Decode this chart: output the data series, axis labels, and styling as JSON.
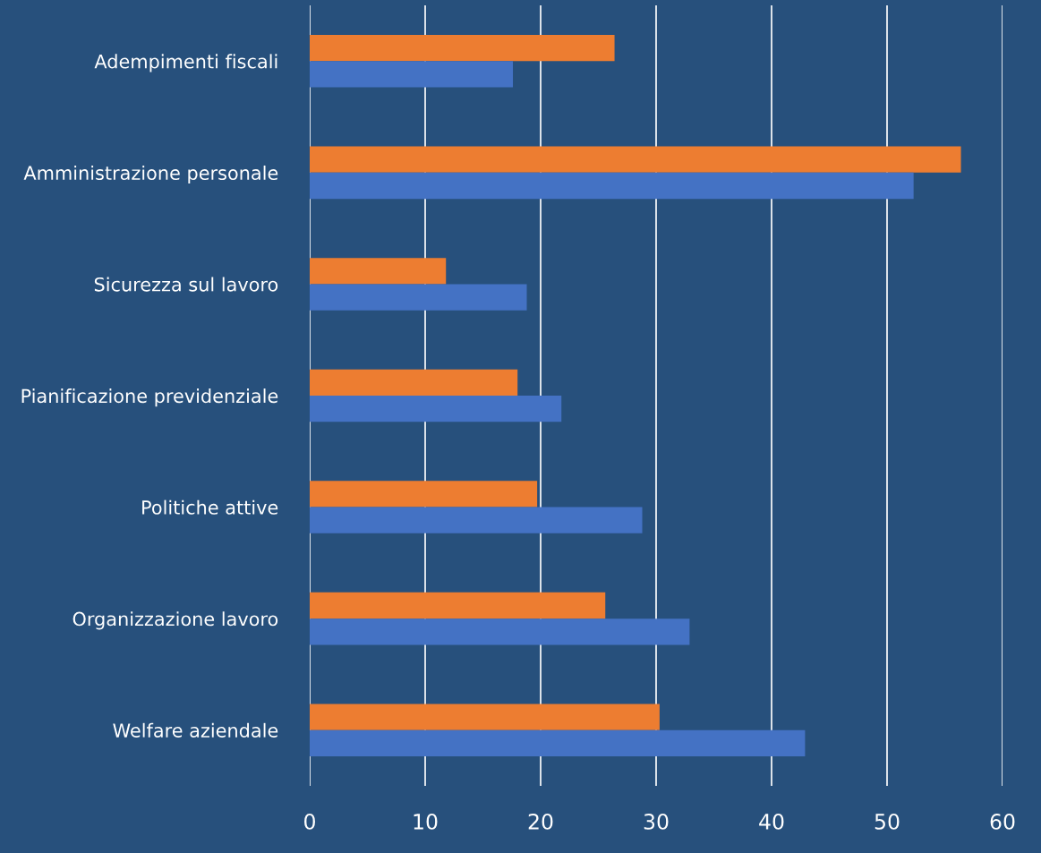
{
  "chart_data": {
    "type": "bar",
    "orientation": "horizontal",
    "categories": [
      "Adempimenti fiscali",
      "Amministrazione personale",
      "Sicurezza sul lavoro",
      "Pianificazione previdenziale",
      "Politiche attive",
      "Organizzazione lavoro",
      "Welfare aziendale"
    ],
    "series": [
      {
        "color": "#ed7d31",
        "values": [
          26.4,
          56.4,
          11.8,
          18.0,
          19.7,
          25.6,
          30.3
        ]
      },
      {
        "color": "#4472c4",
        "values": [
          17.6,
          52.3,
          18.8,
          21.8,
          28.8,
          32.9,
          42.9
        ]
      }
    ],
    "xlim": [
      0,
      60
    ],
    "xticks": [
      0,
      10,
      20,
      30,
      40,
      50,
      60
    ],
    "grid": "x",
    "legend": false
  }
}
